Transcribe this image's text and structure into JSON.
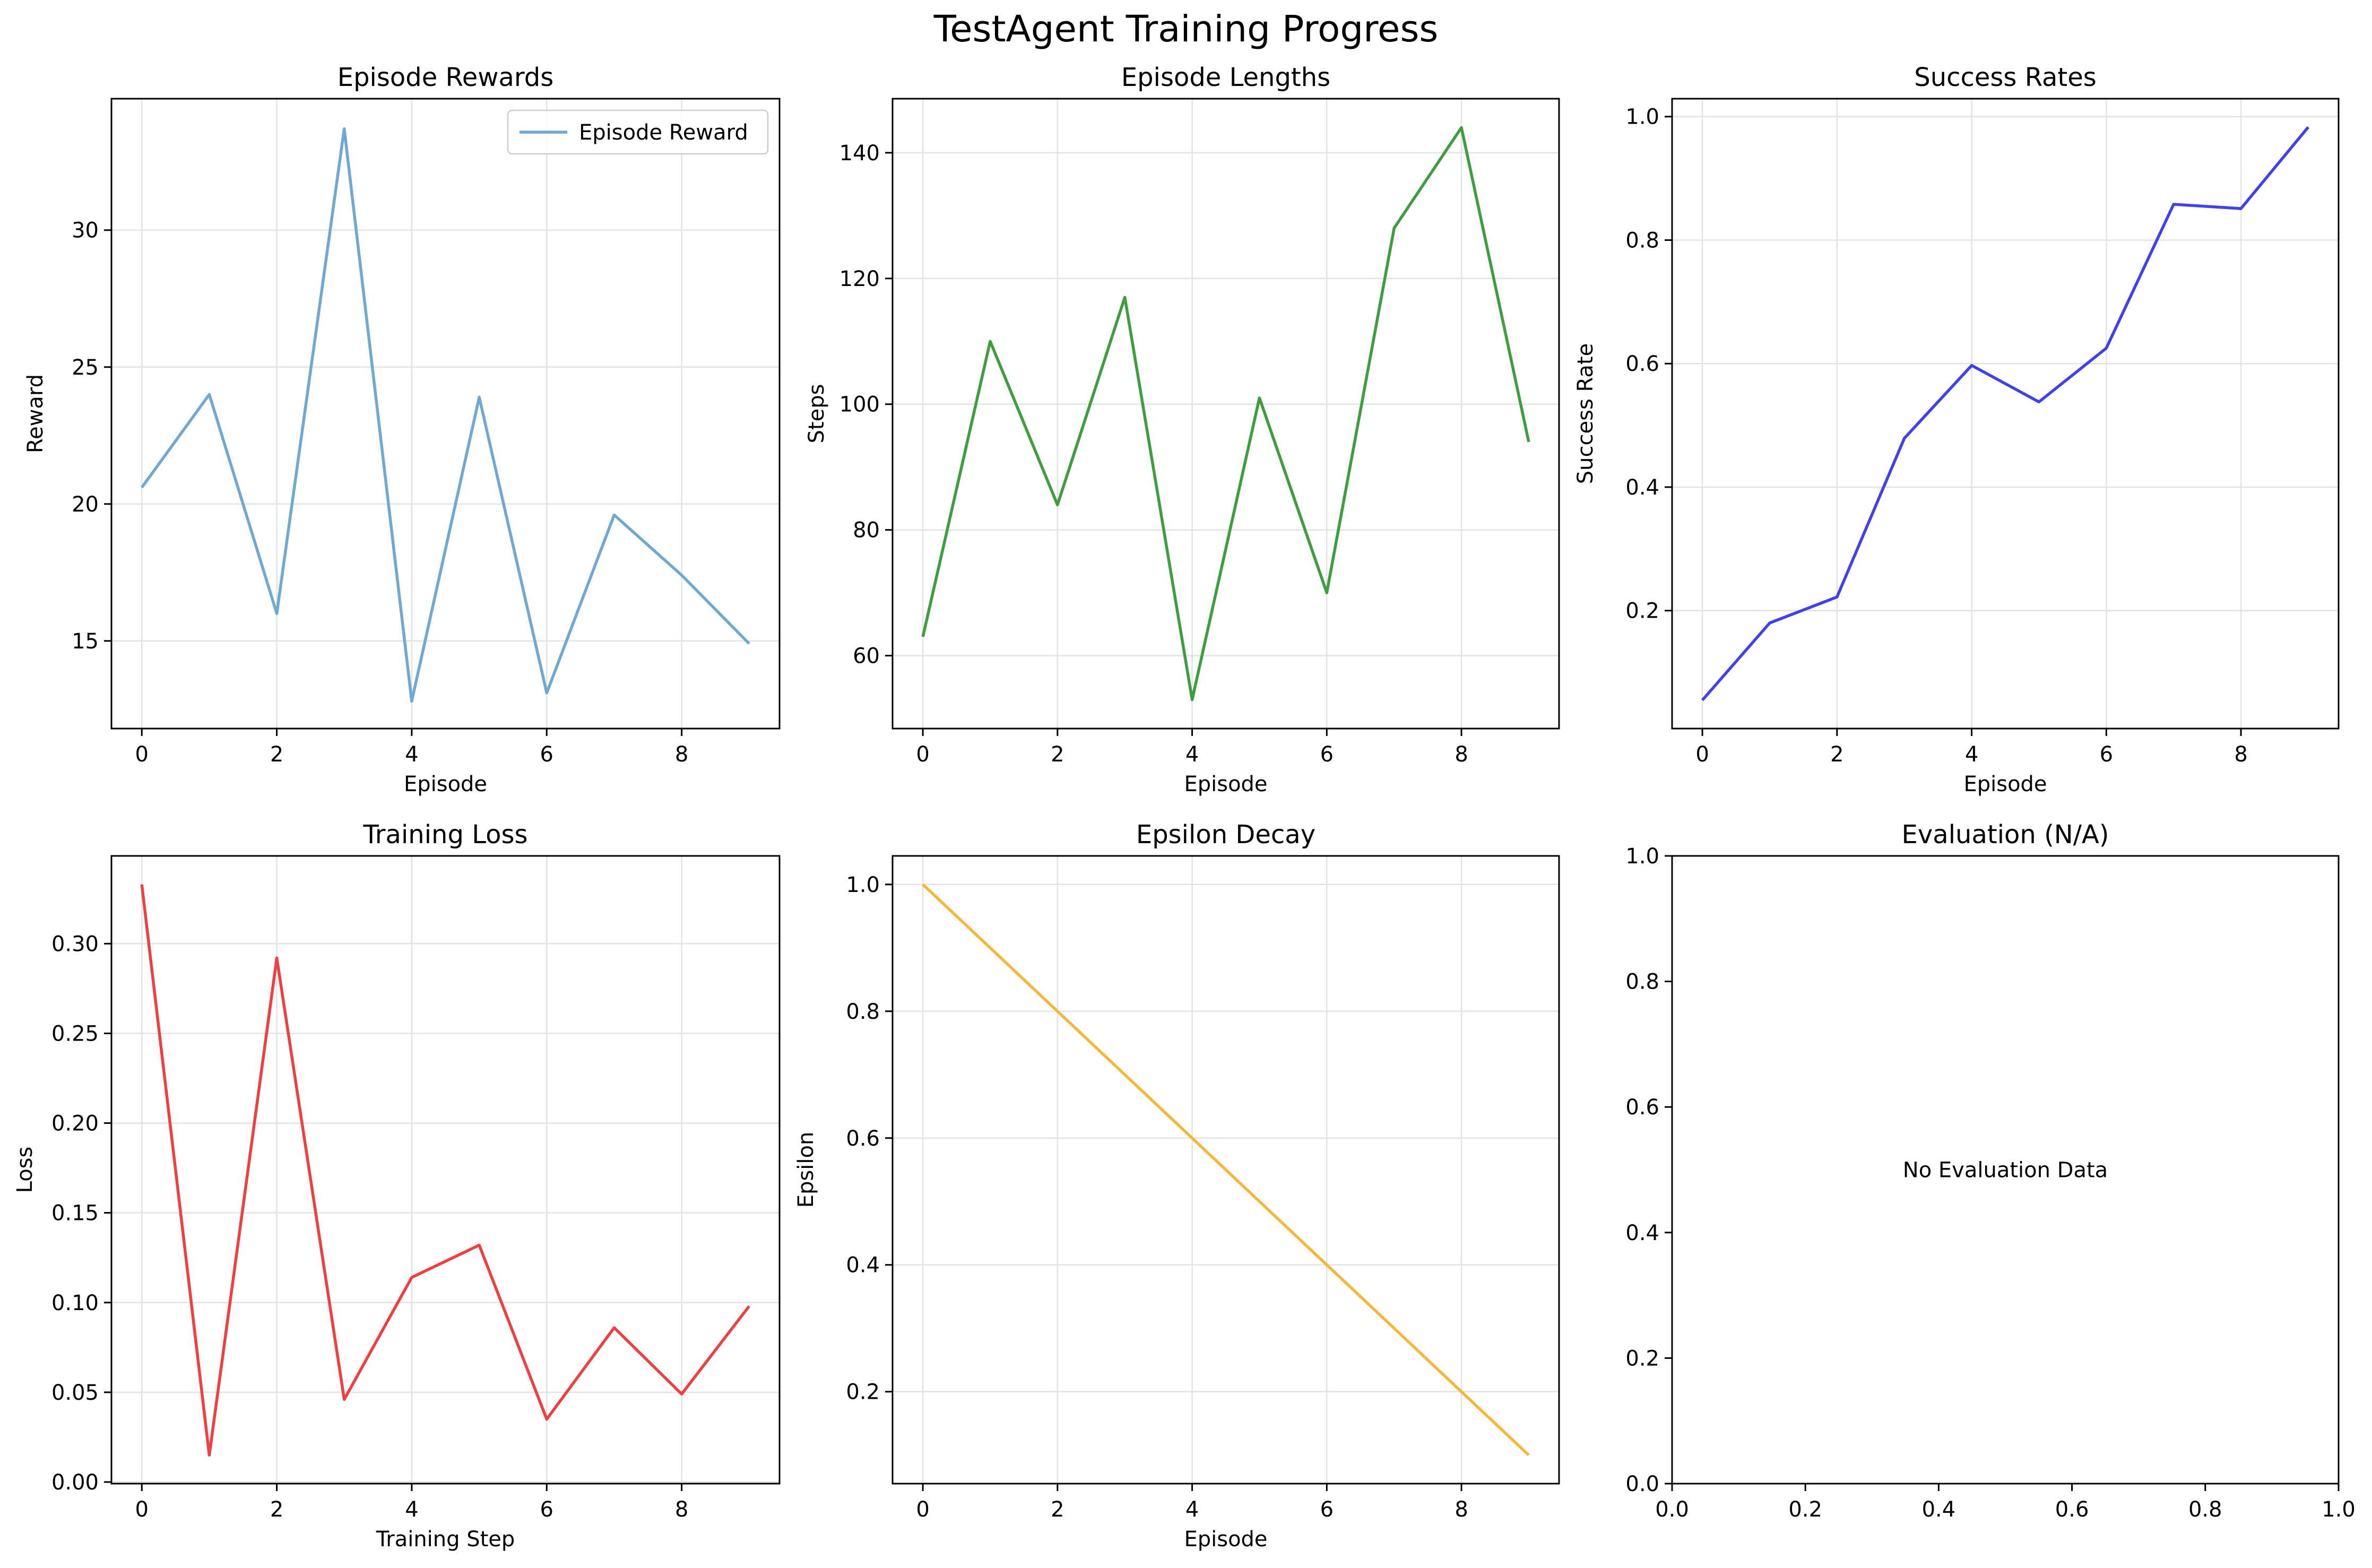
{
  "figure": {
    "title": "TestAgent Training Progress"
  },
  "chart_data": [
    {
      "type": "line",
      "title": "Episode Rewards",
      "xlabel": "Episode",
      "ylabel": "Reward",
      "x": [
        0,
        1,
        2,
        3,
        4,
        5,
        6,
        7,
        8,
        9
      ],
      "series": [
        {
          "name": "Episode Reward",
          "color": "#6FA8D0",
          "values": [
            20.6,
            24.0,
            16.0,
            33.7,
            12.8,
            23.9,
            13.1,
            19.6,
            17.4,
            14.9
          ]
        }
      ],
      "xlim": [
        -0.45,
        9.45
      ],
      "ylim": [
        11.8,
        34.8
      ],
      "xticks": [
        0,
        2,
        4,
        6,
        8
      ],
      "yticks": [
        15,
        20,
        25,
        30
      ],
      "tick_decimals": 0,
      "legend": "upper right",
      "grid": true
    },
    {
      "type": "line",
      "title": "Episode Lengths",
      "xlabel": "Episode",
      "ylabel": "Steps",
      "x": [
        0,
        1,
        2,
        3,
        4,
        5,
        6,
        7,
        8,
        9
      ],
      "series": [
        {
          "color": "#3E9E3E",
          "values": [
            63,
            110,
            84,
            117,
            53,
            101,
            70,
            128,
            144,
            94
          ]
        }
      ],
      "xlim": [
        -0.45,
        9.45
      ],
      "ylim": [
        48.4,
        148.6
      ],
      "xticks": [
        0,
        2,
        4,
        6,
        8
      ],
      "yticks": [
        60,
        80,
        100,
        120,
        140
      ],
      "tick_decimals": 0,
      "grid": true
    },
    {
      "type": "line",
      "title": "Success Rates",
      "xlabel": "Episode",
      "ylabel": "Success Rate",
      "x": [
        0,
        1,
        2,
        3,
        4,
        5,
        6,
        7,
        8,
        9
      ],
      "series": [
        {
          "color": "#4040EE",
          "values": [
            0.055,
            0.18,
            0.222,
            0.479,
            0.597,
            0.538,
            0.625,
            0.858,
            0.851,
            0.983
          ]
        }
      ],
      "xlim": [
        -0.45,
        9.45
      ],
      "ylim": [
        0.009,
        1.029
      ],
      "xticks": [
        0,
        2,
        4,
        6,
        8
      ],
      "yticks": [
        0.2,
        0.4,
        0.6,
        0.8,
        1.0
      ],
      "tick_decimals": 1,
      "grid": true
    },
    {
      "type": "line",
      "title": "Training Loss",
      "xlabel": "Training Step",
      "ylabel": "Loss",
      "x": [
        0,
        1,
        2,
        3,
        4,
        5,
        6,
        7,
        8,
        9
      ],
      "series": [
        {
          "color": "#EE4040",
          "values": [
            0.333,
            0.015,
            0.292,
            0.046,
            0.114,
            0.132,
            0.035,
            0.086,
            0.049,
            0.098
          ]
        }
      ],
      "xlim": [
        -0.45,
        9.45
      ],
      "ylim": [
        -0.0009,
        0.3489
      ],
      "xticks": [
        0,
        2,
        4,
        6,
        8
      ],
      "yticks": [
        0.0,
        0.05,
        0.1,
        0.15,
        0.2,
        0.25,
        0.3
      ],
      "tick_decimals": 2,
      "grid": true
    },
    {
      "type": "line",
      "title": "Epsilon Decay",
      "xlabel": "Episode",
      "ylabel": "Epsilon",
      "x": [
        0,
        1,
        2,
        3,
        4,
        5,
        6,
        7,
        8,
        9
      ],
      "series": [
        {
          "color": "#F5B73C",
          "values": [
            1.0,
            0.9,
            0.8,
            0.7,
            0.6,
            0.5,
            0.4,
            0.3,
            0.2,
            0.1
          ]
        }
      ],
      "xlim": [
        -0.45,
        9.45
      ],
      "ylim": [
        0.055,
        1.045
      ],
      "xticks": [
        0,
        2,
        4,
        6,
        8
      ],
      "yticks": [
        0.2,
        0.4,
        0.6,
        0.8,
        1.0
      ],
      "tick_decimals": 1,
      "grid": true
    },
    {
      "type": "line",
      "title": "Evaluation (N/A)",
      "xlabel": "",
      "ylabel": "",
      "x": [],
      "series": [],
      "xlim": [
        0,
        1
      ],
      "ylim": [
        0,
        1
      ],
      "xticks": [
        0.0,
        0.2,
        0.4,
        0.6,
        0.8,
        1.0
      ],
      "yticks": [
        0.0,
        0.2,
        0.4,
        0.6,
        0.8,
        1.0
      ],
      "tick_decimals": 1,
      "grid": false,
      "annotation": "No Evaluation Data"
    }
  ]
}
